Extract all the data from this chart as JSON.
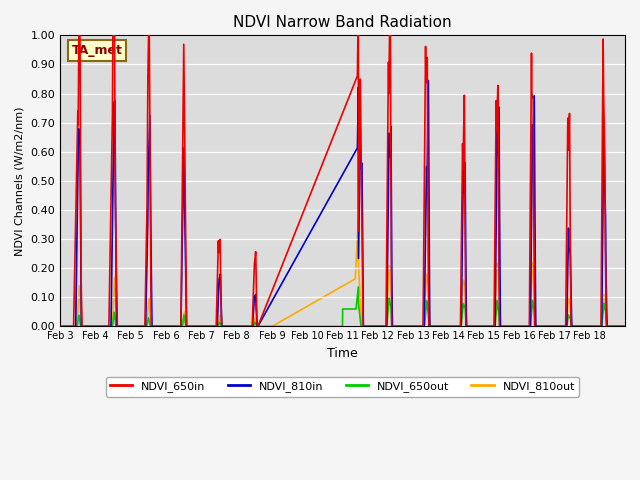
{
  "title": "NDVI Narrow Band Radiation",
  "xlabel": "Time",
  "ylabel": "NDVI Channels (W/m2/nm)",
  "annotation": "TA_met",
  "ylim": [
    0.0,
    1.0
  ],
  "background_color": "#dcdcdc",
  "series": {
    "NDVI_650in": {
      "color": "#ee0000",
      "lw": 1.2
    },
    "NDVI_810in": {
      "color": "#0000cc",
      "lw": 1.2
    },
    "NDVI_650out": {
      "color": "#00cc00",
      "lw": 1.2
    },
    "NDVI_810out": {
      "color": "#ffaa00",
      "lw": 1.2
    }
  },
  "xtick_labels": [
    "Feb 3",
    "Feb 4",
    "Feb 5",
    "Feb 6",
    "Feb 7",
    "Feb 8",
    "Feb 9",
    "Feb 10",
    "Feb 11",
    "Feb 12",
    "Feb 13",
    "Feb 14",
    "Feb 15",
    "Feb 16",
    "Feb 17",
    "Feb 18"
  ],
  "ytick_labels": [
    "0.00",
    "0.10",
    "0.20",
    "0.30",
    "0.40",
    "0.50",
    "0.60",
    "0.70",
    "0.80",
    "0.90",
    "1.00"
  ],
  "legend_labels": [
    "NDVI_650in",
    "NDVI_810in",
    "NDVI_650out",
    "NDVI_810out"
  ],
  "legend_colors": [
    "#ee0000",
    "#0000cc",
    "#00cc00",
    "#ffaa00"
  ]
}
